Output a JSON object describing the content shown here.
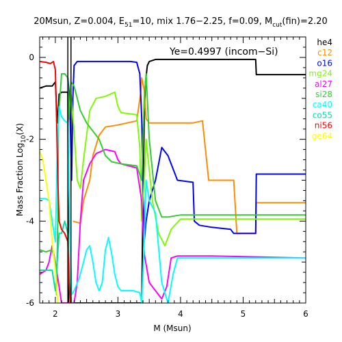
{
  "chart_data": {
    "type": "line",
    "title_parts": {
      "a": "20Msun, Z=0.004, E",
      "a_sub": "51",
      "b": "=10, mix 1.76−2.25, f=0.09, M",
      "b_sub": "cut",
      "c": "(fin)=2.20"
    },
    "xlabel": "M (Msun)",
    "ylabel_parts": {
      "a": "Mass Fraction Log",
      "a_sub": "10",
      "b": "(X)"
    },
    "xlim": [
      1.75,
      6
    ],
    "ylim": [
      -6,
      0.5
    ],
    "x_ticks": [
      2,
      3,
      4,
      5,
      6
    ],
    "y_ticks": [
      0,
      -2,
      -4,
      -6
    ],
    "annotation": "Ye=0.4997 (incom−Si)",
    "vertical_lines": [
      2.2,
      2.25
    ],
    "series": [
      {
        "name": "he4",
        "color": "#000000",
        "points": [
          [
            1.75,
            -0.75
          ],
          [
            1.85,
            -0.7
          ],
          [
            1.95,
            -0.7
          ],
          [
            2.0,
            -0.6
          ],
          [
            2.02,
            -1.2
          ],
          [
            2.04,
            -1.6
          ],
          [
            2.06,
            -0.9
          ],
          [
            2.1,
            -0.85
          ],
          [
            2.15,
            -0.85
          ],
          [
            2.2,
            -0.85
          ],
          [
            2.21,
            -6
          ],
          [
            3.38,
            -6
          ],
          [
            3.4,
            -3.5
          ],
          [
            3.42,
            -1.5
          ],
          [
            3.44,
            -0.6
          ],
          [
            3.47,
            -0.2
          ],
          [
            3.5,
            -0.1
          ],
          [
            3.6,
            -0.05
          ],
          [
            4.0,
            -0.05
          ],
          [
            5.2,
            -0.05
          ],
          [
            5.21,
            -0.42
          ],
          [
            6.0,
            -0.42
          ]
        ]
      },
      {
        "name": "c12",
        "color": "#ff8c00",
        "points": [
          [
            2.28,
            -4
          ],
          [
            2.4,
            -4.05
          ],
          [
            2.45,
            -3.5
          ],
          [
            2.55,
            -3.0
          ],
          [
            2.6,
            -2.4
          ],
          [
            2.7,
            -1.9
          ],
          [
            2.8,
            -1.7
          ],
          [
            3.0,
            -1.65
          ],
          [
            3.3,
            -1.55
          ],
          [
            3.36,
            -0.9
          ],
          [
            3.38,
            -0.5
          ],
          [
            3.42,
            -0.8
          ],
          [
            3.45,
            -1.5
          ],
          [
            3.5,
            -1.6
          ],
          [
            4.2,
            -1.6
          ],
          [
            4.35,
            -1.55
          ],
          [
            4.45,
            -3.0
          ],
          [
            4.85,
            -3.0
          ],
          [
            4.9,
            -4.3
          ],
          [
            5.2,
            -4.3
          ],
          [
            5.21,
            -3.55
          ],
          [
            6.0,
            -3.55
          ]
        ]
      },
      {
        "name": "o16",
        "color": "#0000ff",
        "points": [
          [
            2.2,
            -0.5
          ],
          [
            2.23,
            -1.0
          ],
          [
            2.26,
            -3.0
          ],
          [
            2.28,
            -1.0
          ],
          [
            2.3,
            -0.2
          ],
          [
            2.35,
            -0.1
          ],
          [
            2.5,
            -0.1
          ],
          [
            3.0,
            -0.1
          ],
          [
            3.2,
            -0.1
          ],
          [
            3.3,
            -0.12
          ],
          [
            3.35,
            -0.4
          ],
          [
            3.38,
            -1.5
          ],
          [
            3.42,
            -4.5
          ],
          [
            3.45,
            -4.0
          ],
          [
            3.5,
            -3.5
          ],
          [
            3.6,
            -3.0
          ],
          [
            3.7,
            -2.2
          ],
          [
            3.8,
            -2.4
          ],
          [
            3.95,
            -3.0
          ],
          [
            4.2,
            -3.05
          ],
          [
            4.22,
            -4.0
          ],
          [
            4.3,
            -4.1
          ],
          [
            4.5,
            -4.15
          ],
          [
            4.8,
            -4.2
          ],
          [
            4.85,
            -4.3
          ],
          [
            5.2,
            -4.3
          ],
          [
            5.21,
            -2.85
          ],
          [
            6.0,
            -2.85
          ]
        ]
      },
      {
        "name": "mg24",
        "color": "#7cfc00",
        "points": [
          [
            2.25,
            -0.9
          ],
          [
            2.3,
            -1.8
          ],
          [
            2.35,
            -3.0
          ],
          [
            2.4,
            -3.2
          ],
          [
            2.45,
            -2.5
          ],
          [
            2.55,
            -1.3
          ],
          [
            2.65,
            -1.0
          ],
          [
            2.8,
            -0.95
          ],
          [
            2.95,
            -0.85
          ],
          [
            3.0,
            -1.2
          ],
          [
            3.05,
            -1.35
          ],
          [
            3.3,
            -1.4
          ],
          [
            3.35,
            -2.2
          ],
          [
            3.38,
            -4.0
          ],
          [
            3.42,
            -3.0
          ],
          [
            3.45,
            -2.0
          ],
          [
            3.55,
            -3.5
          ],
          [
            3.65,
            -4.3
          ],
          [
            3.75,
            -4.6
          ],
          [
            3.85,
            -4.2
          ],
          [
            4.0,
            -3.95
          ],
          [
            4.5,
            -3.95
          ],
          [
            6.0,
            -3.95
          ]
        ]
      },
      {
        "name": "al27",
        "color": "#ff00ff",
        "points": [
          [
            1.75,
            -5.3
          ],
          [
            1.85,
            -5.2
          ],
          [
            1.9,
            -5.0
          ],
          [
            1.95,
            -4.6
          ],
          [
            2.0,
            -5.0
          ],
          [
            2.05,
            -5.5
          ],
          [
            2.1,
            -6
          ],
          [
            2.3,
            -6
          ],
          [
            2.35,
            -5.5
          ],
          [
            2.4,
            -4.0
          ],
          [
            2.45,
            -3.0
          ],
          [
            2.55,
            -2.6
          ],
          [
            2.65,
            -2.35
          ],
          [
            2.8,
            -2.25
          ],
          [
            2.95,
            -2.3
          ],
          [
            3.0,
            -2.5
          ],
          [
            3.05,
            -2.6
          ],
          [
            3.3,
            -2.7
          ],
          [
            3.38,
            -3.5
          ],
          [
            3.42,
            -4.8
          ],
          [
            3.5,
            -5.5
          ],
          [
            3.6,
            -5.7
          ],
          [
            3.7,
            -5.9
          ],
          [
            3.78,
            -5.6
          ],
          [
            3.85,
            -4.9
          ],
          [
            3.95,
            -4.85
          ],
          [
            4.5,
            -4.85
          ],
          [
            6.0,
            -4.9
          ]
        ]
      },
      {
        "name": "si28",
        "color": "#32cd32",
        "points": [
          [
            1.75,
            -4.7
          ],
          [
            1.85,
            -4.75
          ],
          [
            1.95,
            -4.7
          ],
          [
            2.0,
            -5.0
          ],
          [
            2.02,
            -5.8
          ],
          [
            2.04,
            -4.0
          ],
          [
            2.05,
            -1.5
          ],
          [
            2.1,
            -0.4
          ],
          [
            2.15,
            -0.4
          ],
          [
            2.2,
            -0.5
          ],
          [
            2.22,
            -1.5
          ],
          [
            2.25,
            -0.6
          ],
          [
            2.3,
            -0.7
          ],
          [
            2.4,
            -1.3
          ],
          [
            2.5,
            -1.6
          ],
          [
            2.6,
            -1.8
          ],
          [
            2.7,
            -2.0
          ],
          [
            2.8,
            -2.4
          ],
          [
            2.9,
            -2.55
          ],
          [
            3.05,
            -2.6
          ],
          [
            3.3,
            -2.65
          ],
          [
            3.38,
            -3.0
          ],
          [
            3.42,
            -1.0
          ],
          [
            3.45,
            -0.4
          ],
          [
            3.5,
            -2.0
          ],
          [
            3.6,
            -3.5
          ],
          [
            3.7,
            -3.9
          ],
          [
            3.8,
            -3.9
          ],
          [
            4.0,
            -3.85
          ],
          [
            6.0,
            -3.85
          ]
        ]
      },
      {
        "name": "ca40",
        "color": "#00ffff",
        "points": [
          [
            1.75,
            -3.45
          ],
          [
            1.85,
            -3.45
          ],
          [
            1.9,
            -3.5
          ],
          [
            1.95,
            -4.0
          ],
          [
            2.0,
            -4.5
          ],
          [
            2.03,
            -2.5
          ],
          [
            2.06,
            -1.2
          ],
          [
            2.1,
            -1.45
          ],
          [
            2.15,
            -1.55
          ],
          [
            2.2,
            -1.6
          ],
          [
            2.23,
            -4.0
          ],
          [
            2.26,
            -5.8
          ],
          [
            2.3,
            -5.7
          ],
          [
            2.38,
            -5.4
          ],
          [
            2.45,
            -5.0
          ],
          [
            2.5,
            -4.7
          ],
          [
            2.55,
            -4.6
          ],
          [
            2.6,
            -5.0
          ],
          [
            2.65,
            -5.5
          ],
          [
            2.7,
            -5.7
          ],
          [
            2.75,
            -5.5
          ],
          [
            2.8,
            -4.7
          ],
          [
            2.85,
            -4.4
          ],
          [
            2.9,
            -4.8
          ],
          [
            2.95,
            -5.3
          ],
          [
            3.0,
            -5.6
          ],
          [
            3.05,
            -5.7
          ],
          [
            3.25,
            -5.7
          ],
          [
            3.35,
            -5.75
          ],
          [
            3.38,
            -6
          ],
          [
            3.42,
            -4.5
          ],
          [
            3.45,
            -3.0
          ],
          [
            3.5,
            -3.5
          ],
          [
            3.6,
            -3.8
          ],
          [
            3.7,
            -5.5
          ],
          [
            3.8,
            -6.0
          ],
          [
            3.88,
            -5.3
          ],
          [
            3.95,
            -4.9
          ],
          [
            4.5,
            -4.9
          ],
          [
            6.0,
            -4.9
          ]
        ]
      },
      {
        "name": "co55",
        "color": "#00e0a0",
        "points": [
          [
            1.75,
            -5.2
          ],
          [
            1.85,
            -5.2
          ],
          [
            1.95,
            -5.2
          ],
          [
            2.0,
            -5.7
          ],
          [
            2.03,
            -5.0
          ],
          [
            2.06,
            -4.3
          ],
          [
            2.1,
            -4.3
          ],
          [
            2.15,
            -4.0
          ],
          [
            2.2,
            -4.3
          ],
          [
            2.23,
            -5.5
          ],
          [
            2.26,
            -6.0
          ]
        ]
      },
      {
        "name": "ni56",
        "color": "#ff0000",
        "points": [
          [
            1.75,
            -0.1
          ],
          [
            1.85,
            -0.12
          ],
          [
            1.92,
            -0.15
          ],
          [
            1.97,
            -0.1
          ],
          [
            2.0,
            -0.3
          ],
          [
            2.02,
            -1.5
          ],
          [
            2.04,
            -3.0
          ],
          [
            2.06,
            -4.0
          ],
          [
            2.1,
            -4.2
          ],
          [
            2.15,
            -4.3
          ],
          [
            2.2,
            -4.5
          ],
          [
            2.22,
            -5.5
          ],
          [
            2.24,
            -6.0
          ]
        ]
      },
      {
        "name": "ge64",
        "color": "#ffff00",
        "points": [
          [
            1.75,
            -2.3
          ],
          [
            1.8,
            -2.5
          ],
          [
            1.85,
            -3.0
          ],
          [
            1.9,
            -3.5
          ],
          [
            1.95,
            -4.5
          ],
          [
            2.0,
            -5.2
          ],
          [
            2.04,
            -6.0
          ]
        ]
      }
    ]
  }
}
